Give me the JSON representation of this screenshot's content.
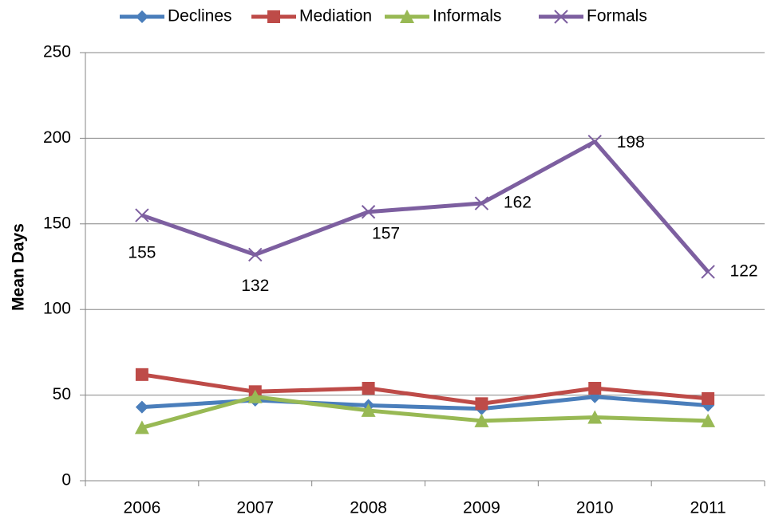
{
  "chart_data": {
    "type": "line",
    "y_label": "Mean Days",
    "categories": [
      "2006",
      "2007",
      "2008",
      "2009",
      "2010",
      "2011"
    ],
    "series": [
      {
        "name": "Declines",
        "color": "#4a7ebb",
        "marker": "diamond",
        "values": [
          43,
          47,
          44,
          42,
          49,
          44
        ]
      },
      {
        "name": "Mediation",
        "color": "#be4b48",
        "marker": "square",
        "values": [
          62,
          52,
          54,
          45,
          54,
          48
        ]
      },
      {
        "name": "Informals",
        "color": "#98b954",
        "marker": "triangle",
        "values": [
          31,
          49,
          41,
          35,
          37,
          35
        ]
      },
      {
        "name": "Formals",
        "color": "#7d5fa0",
        "marker": "x",
        "show_labels": true,
        "values": [
          155,
          132,
          157,
          162,
          198,
          122
        ]
      }
    ],
    "ylim": [
      0,
      250
    ],
    "yticks": [
      0,
      50,
      100,
      150,
      200,
      250
    ],
    "grid": true,
    "legend": "top"
  }
}
